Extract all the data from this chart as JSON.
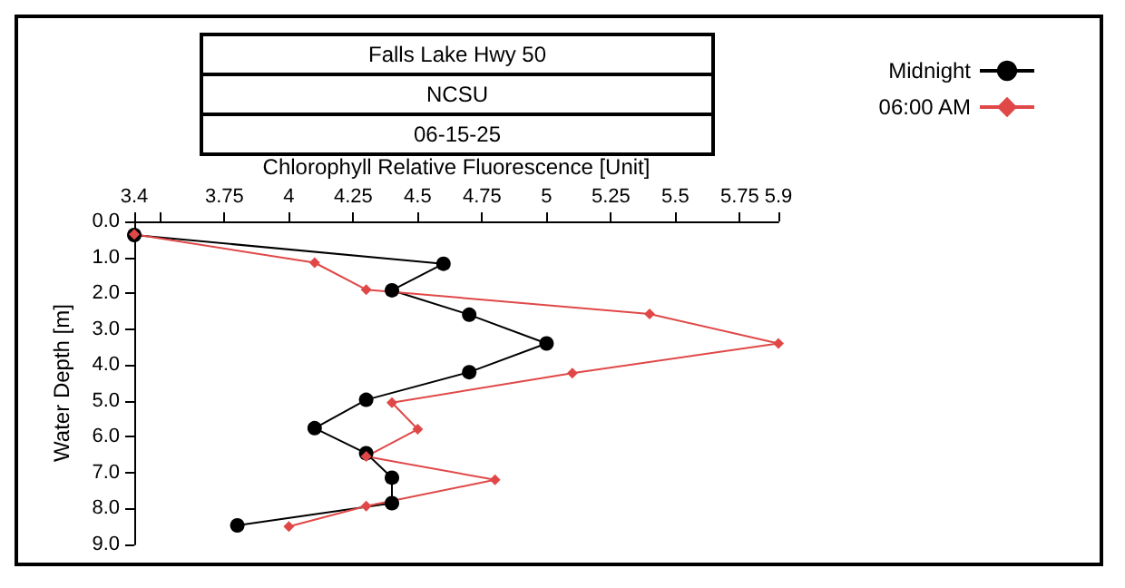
{
  "chart_data": {
    "type": "line",
    "title": "Falls Lake Hwy 50",
    "subtitle": "NCSU",
    "annotations": [
      "06-15-25"
    ],
    "xlabel": "Chlorophyll Relative Fluorescence [Unit]",
    "ylabel": "Water Depth [m]",
    "xlim": [
      3.4,
      5.9
    ],
    "xticks": [
      3.4,
      {
        "value": 3.5,
        "label": null
      },
      3.75,
      4,
      4.25,
      4.5,
      4.75,
      5,
      5.25,
      5.5,
      5.75,
      5.9
    ],
    "ylim": [
      9,
      0
    ],
    "yticks": [
      {
        "value": 0,
        "label": "0.0"
      },
      {
        "value": 1,
        "label": "1.0"
      },
      {
        "value": 2,
        "label": "2.0"
      },
      {
        "value": 3,
        "label": "3.0"
      },
      {
        "value": 4,
        "label": "4.0"
      },
      {
        "value": 5,
        "label": "5.0"
      },
      {
        "value": 6,
        "label": "6.0"
      },
      {
        "value": 7,
        "label": "7.0"
      },
      {
        "value": 8,
        "label": "8.0"
      },
      {
        "value": 9,
        "label": "9.0"
      }
    ],
    "grid": false,
    "legend": "top right",
    "marker": "circle",
    "line_style": "solid",
    "series": [
      {
        "name": "Midnight",
        "color": "#000000",
        "x": [
          3.4,
          4.6,
          4.4,
          4.7,
          5.0,
          4.7,
          4.3,
          4.1,
          4.3,
          4.4,
          4.4,
          3.8
        ],
        "values": [
          0.38,
          1.18,
          1.92,
          2.6,
          3.4,
          4.2,
          4.97,
          5.76,
          6.46,
          7.14,
          7.85,
          8.47
        ]
      },
      {
        "name": "06:00 AM",
        "color": "#e04848",
        "marker": "diamond",
        "x": [
          3.4,
          4.1,
          4.3,
          5.4,
          5.9,
          5.1,
          4.4,
          4.5,
          4.3,
          4.8,
          4.3,
          4.0
        ],
        "values": [
          0.36,
          1.15,
          1.9,
          2.58,
          3.4,
          4.23,
          5.05,
          5.79,
          6.55,
          7.2,
          7.93,
          8.5
        ]
      }
    ]
  }
}
